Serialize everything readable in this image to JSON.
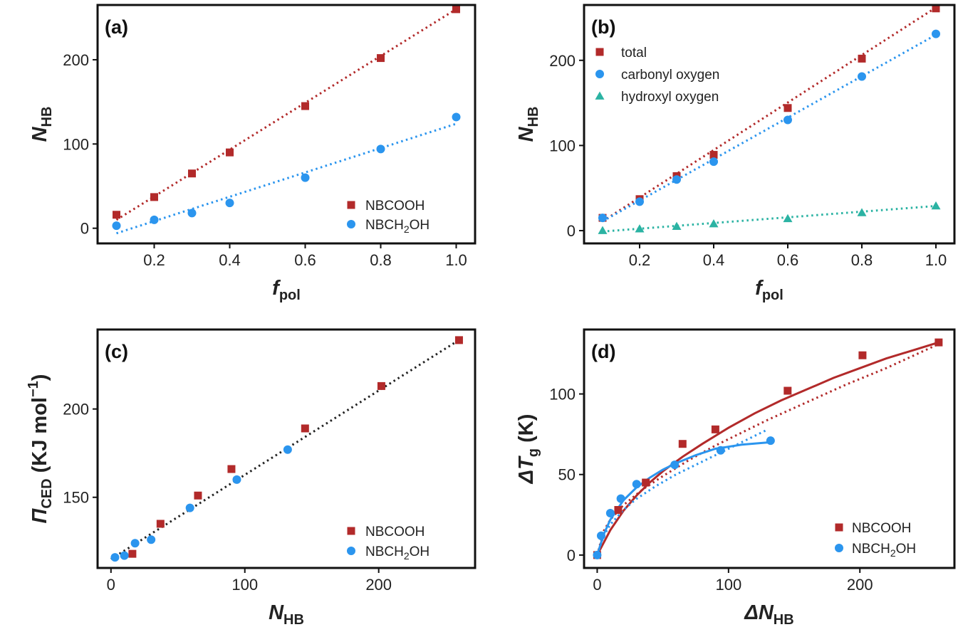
{
  "colors": {
    "red": "#b22a2a",
    "blue": "#2b95ee",
    "teal": "#2bb3a3",
    "black": "#222222"
  },
  "chart_data": [
    {
      "panel": "(a)",
      "type": "scatter",
      "xlabel_main": "f",
      "xlabel_sub": "pol",
      "ylabel_main": "N",
      "ylabel_sub": "HB",
      "xlim": [
        0.05,
        1.05
      ],
      "ylim": [
        -18,
        265
      ],
      "xticks": [
        0.2,
        0.4,
        0.6,
        0.8,
        1.0
      ],
      "xtick_labels": [
        "0.2",
        "0.4",
        "0.6",
        "0.8",
        "1.0"
      ],
      "yticks": [
        0,
        100,
        200
      ],
      "ytick_labels": [
        "0",
        "100",
        "200"
      ],
      "legend_position": "lower-right",
      "series": [
        {
          "name": "NBCOOH",
          "color": "red",
          "marker": "square",
          "x": [
            0.1,
            0.2,
            0.3,
            0.4,
            0.6,
            0.8,
            1.0
          ],
          "y": [
            16,
            37,
            65,
            90,
            145,
            202,
            260
          ],
          "fit": {
            "style": "dotted",
            "x": [
              0.1,
              1.0
            ],
            "y": [
              10,
              260
            ]
          }
        },
        {
          "name": "NBCH₂OH",
          "name_main": "NBCH",
          "name_sub": "2",
          "name_tail": "OH",
          "color": "blue",
          "marker": "circle",
          "x": [
            0.1,
            0.2,
            0.3,
            0.4,
            0.6,
            0.8,
            1.0
          ],
          "y": [
            3,
            10,
            18,
            30,
            60,
            94,
            132
          ],
          "fit": {
            "style": "dotted",
            "x": [
              0.1,
              1.0
            ],
            "y": [
              -6,
              124
            ]
          }
        }
      ]
    },
    {
      "panel": "(b)",
      "type": "scatter",
      "xlabel_main": "f",
      "xlabel_sub": "pol",
      "ylabel_main": "N",
      "ylabel_sub": "HB",
      "xlim": [
        0.05,
        1.05
      ],
      "ylim": [
        -15,
        265
      ],
      "xticks": [
        0.2,
        0.4,
        0.6,
        0.8,
        1.0
      ],
      "xtick_labels": [
        "0.2",
        "0.4",
        "0.6",
        "0.8",
        "1.0"
      ],
      "yticks": [
        0,
        100,
        200
      ],
      "ytick_labels": [
        "0",
        "100",
        "200"
      ],
      "legend_position": "upper-left",
      "series": [
        {
          "name": "total",
          "color": "red",
          "marker": "square",
          "x": [
            0.1,
            0.2,
            0.3,
            0.4,
            0.6,
            0.8,
            1.0
          ],
          "y": [
            15,
            37,
            64,
            89,
            144,
            202,
            261
          ],
          "fit": {
            "style": "dotted",
            "x": [
              0.1,
              1.0
            ],
            "y": [
              11,
              262
            ]
          }
        },
        {
          "name": "carbonyl oxygen",
          "color": "blue",
          "marker": "circle",
          "x": [
            0.1,
            0.2,
            0.3,
            0.4,
            0.6,
            0.8,
            1.0
          ],
          "y": [
            15,
            34,
            60,
            81,
            130,
            181,
            231
          ],
          "fit": {
            "style": "dotted",
            "x": [
              0.1,
              1.0
            ],
            "y": [
              11,
              230
            ]
          }
        },
        {
          "name": "hydroxyl oxygen",
          "color": "teal",
          "marker": "triangle",
          "x": [
            0.1,
            0.2,
            0.3,
            0.4,
            0.6,
            0.8,
            1.0
          ],
          "y": [
            0,
            2,
            5,
            8,
            14,
            21,
            29
          ],
          "fit": {
            "style": "dotted",
            "x": [
              0.1,
              1.0
            ],
            "y": [
              -1,
              29
            ]
          }
        }
      ]
    },
    {
      "panel": "(c)",
      "type": "scatter",
      "xlabel_main": "N",
      "xlabel_sub": "HB",
      "ylabel_main": "Π",
      "ylabel_sub": "CED",
      "ylabel_tail": " (KJ mol",
      "ylabel_sup": "−1",
      "ylabel_end": ")",
      "xlim": [
        -10,
        272
      ],
      "ylim": [
        110,
        245
      ],
      "xticks": [
        0,
        100,
        200
      ],
      "xtick_labels": [
        "0",
        "100",
        "200"
      ],
      "yticks": [
        150,
        200
      ],
      "ytick_labels": [
        "150",
        "200"
      ],
      "legend_position": "lower-right",
      "series": [
        {
          "name": "NBCOOH",
          "color": "red",
          "marker": "square",
          "x": [
            16,
            37,
            65,
            90,
            145,
            202,
            260
          ],
          "y": [
            118,
            135,
            151,
            166,
            189,
            213,
            239
          ]
        },
        {
          "name": "NBCH₂OH",
          "name_main": "NBCH",
          "name_sub": "2",
          "name_tail": "OH",
          "color": "blue",
          "marker": "circle",
          "x": [
            3,
            10,
            18,
            30,
            59,
            94,
            132
          ],
          "y": [
            116,
            117,
            124,
            126,
            144,
            160,
            177
          ]
        }
      ],
      "fits": [
        {
          "style": "dotted",
          "color": "black",
          "x": [
            0,
            262
          ],
          "y": [
            115,
            240
          ]
        }
      ]
    },
    {
      "panel": "(d)",
      "type": "scatter",
      "xlabel_main": "ΔN",
      "xlabel_sub": "HB",
      "ylabel_main": "ΔT",
      "ylabel_sub": "g",
      "ylabel_tail": " (K)",
      "xlim": [
        -10,
        272
      ],
      "ylim": [
        -8,
        140
      ],
      "xticks": [
        0,
        100,
        200
      ],
      "xtick_labels": [
        "0",
        "100",
        "200"
      ],
      "yticks": [
        0,
        50,
        100
      ],
      "ytick_labels": [
        "0",
        "50",
        "100"
      ],
      "legend_position": "lower-right",
      "series": [
        {
          "name": "NBCOOH",
          "color": "red",
          "marker": "square",
          "x": [
            0,
            16,
            37,
            65,
            90,
            145,
            202,
            260
          ],
          "y": [
            0,
            28,
            45,
            69,
            78,
            102,
            124,
            132
          ]
        },
        {
          "name": "NBCH₂OH",
          "name_main": "NBCH",
          "name_sub": "2",
          "name_tail": "OH",
          "color": "blue",
          "marker": "circle",
          "x": [
            0,
            3,
            10,
            18,
            30,
            59,
            94,
            132
          ],
          "y": [
            0,
            12,
            26,
            35,
            44,
            56,
            65,
            71
          ]
        }
      ],
      "fits": [
        {
          "style": "solid",
          "color": "red",
          "x": [
            0,
            10,
            20,
            30,
            40,
            50,
            65,
            80,
            100,
            120,
            140,
            160,
            180,
            200,
            220,
            240,
            260
          ],
          "y": [
            0,
            15.5,
            27.5,
            37,
            45,
            52,
            61,
            69,
            79,
            88,
            96,
            103,
            110,
            116,
            122,
            127,
            132
          ]
        },
        {
          "style": "dotted",
          "color": "red",
          "x": [
            0,
            5,
            10,
            20,
            35,
            50,
            70,
            90,
            110,
            130,
            160,
            190,
            220,
            260
          ],
          "y": [
            0,
            15,
            22,
            31,
            41,
            49,
            59,
            68,
            76,
            84,
            95,
            106,
            116,
            131
          ]
        },
        {
          "style": "solid",
          "color": "blue",
          "x": [
            0,
            5,
            10,
            20,
            30,
            40,
            50,
            60,
            75,
            90,
            110,
            132
          ],
          "y": [
            0,
            13,
            22,
            34,
            42,
            48,
            53,
            57,
            62,
            66,
            68.5,
            70
          ]
        },
        {
          "style": "dotted",
          "color": "blue",
          "x": [
            0,
            5,
            10,
            20,
            30,
            45,
            60,
            80,
            100,
            115,
            130
          ],
          "y": [
            0,
            12,
            19,
            28,
            35,
            43,
            50,
            58,
            66,
            72,
            78
          ]
        }
      ]
    }
  ]
}
